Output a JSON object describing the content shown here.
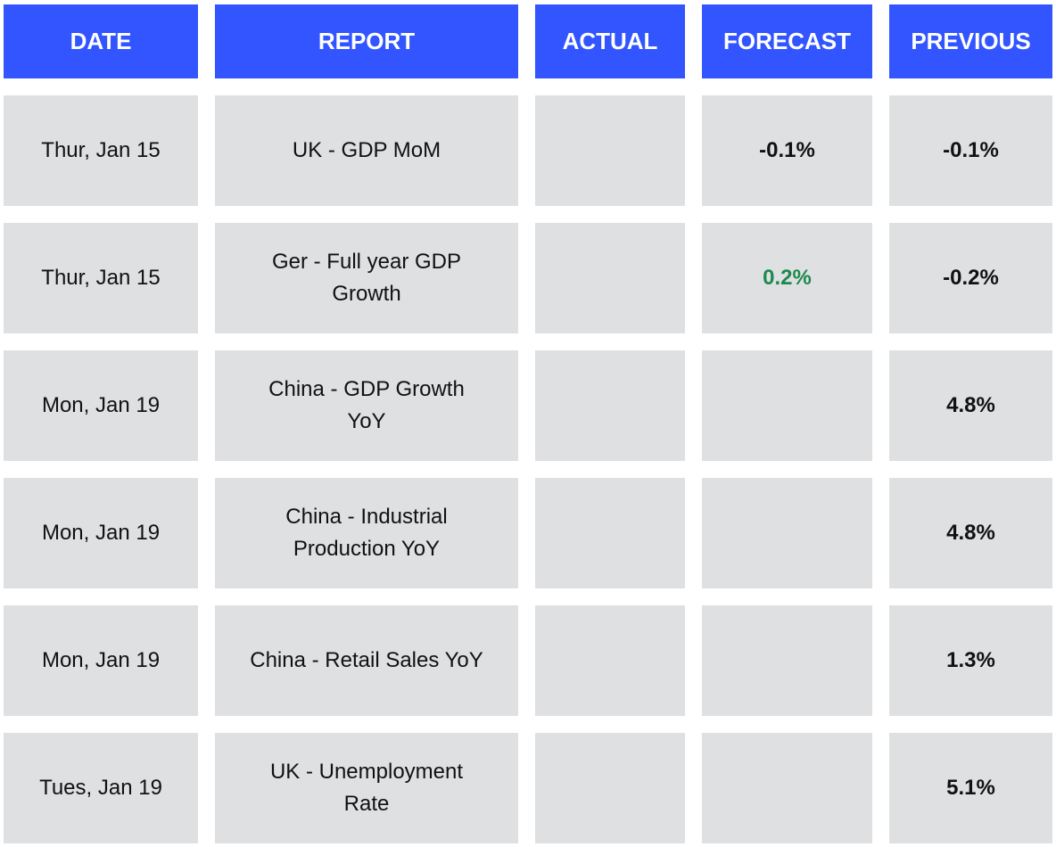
{
  "table": {
    "header": [
      "DATE",
      "REPORT",
      "ACTUAL",
      "FORECAST",
      "PREVIOUS"
    ],
    "rows": [
      {
        "date": "Thur, Jan 15",
        "report": "UK - GDP MoM",
        "forecast": "-0.1%",
        "previous": "-0.1%"
      },
      {
        "date": "Thur, Jan 15",
        "report": "Ger - Full year GDP Growth",
        "forecast": "0.2%",
        "previous": "-0.2%"
      },
      {
        "date": "Mon, Jan 19",
        "report": "China - GDP Growth YoY",
        "previous": "4.8%"
      },
      {
        "date": "Mon, Jan 19",
        "report": "China - Industrial Production YoY",
        "previous": "4.8%"
      },
      {
        "date": "Mon, Jan 19",
        "report": "China - Retail Sales YoY",
        "previous": "1.3%"
      },
      {
        "date": "Tues, Jan 19",
        "report": "UK - Unemployment Rate",
        "previous": "5.1%"
      }
    ]
  }
}
